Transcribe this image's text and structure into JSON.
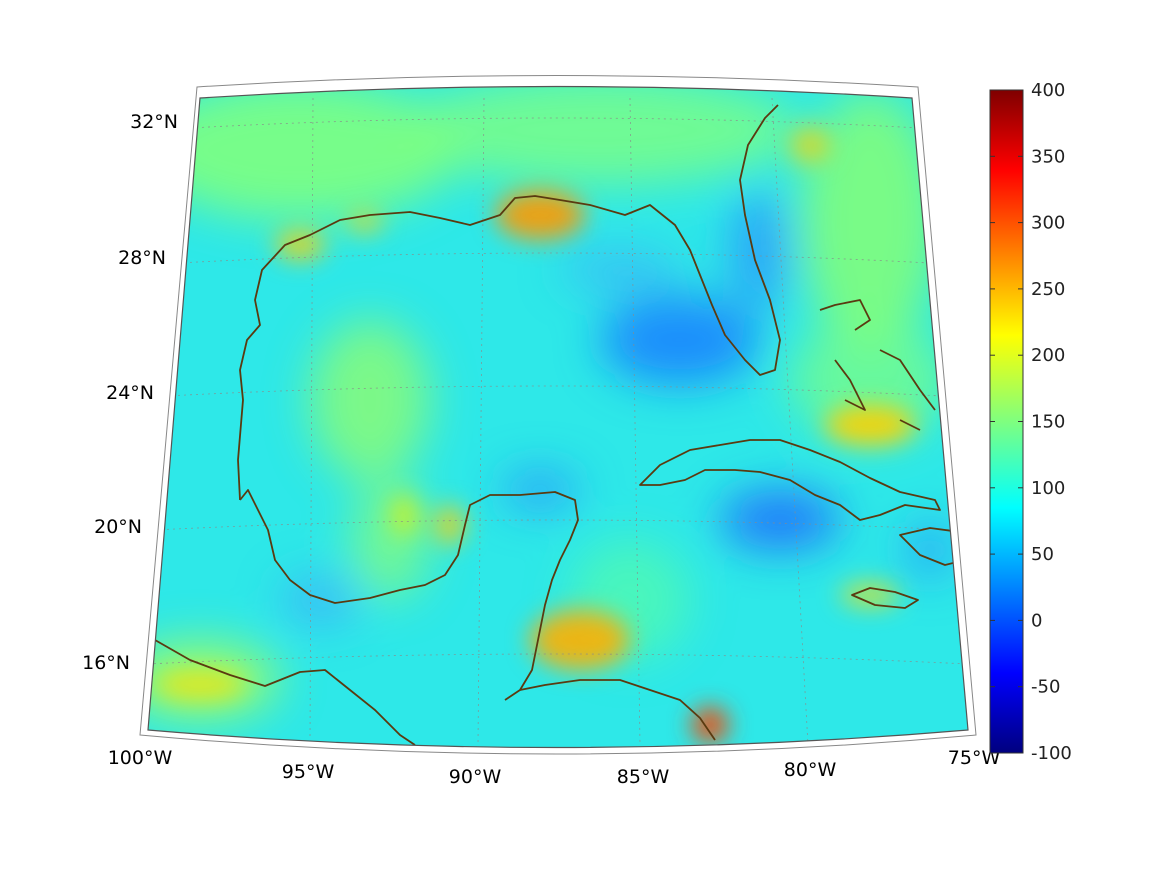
{
  "map": {
    "region": "Gulf of Mexico and Caribbean",
    "projection": "conic",
    "lon_range": [
      -100,
      -75
    ],
    "lat_range": [
      14,
      32
    ],
    "lat_labels": [
      "32°N",
      "28°N",
      "24°N",
      "20°N",
      "16°N"
    ],
    "lon_labels": [
      "100°W",
      "95°W",
      "90°W",
      "85°W",
      "80°W",
      "75°W"
    ],
    "gridlines": true,
    "coastline_color": "#5a3a10"
  },
  "colorbar": {
    "colormap": "jet",
    "min": -100,
    "max": 400,
    "tick_labels": [
      "400",
      "350",
      "300",
      "250",
      "200",
      "150",
      "100",
      "50",
      "0",
      "-50",
      "-100"
    ]
  },
  "field": {
    "background_value": 120,
    "highlights": [
      {
        "name": "mississippi-delta-high",
        "value": 280
      },
      {
        "name": "honduras-coast-high",
        "value": 260
      },
      {
        "name": "panama-coast-high",
        "value": 330
      },
      {
        "name": "bahamas-high",
        "value": 230
      },
      {
        "name": "campeche-high",
        "value": 210
      },
      {
        "name": "florida-straits-low",
        "value": 40
      },
      {
        "name": "cuba-south-low",
        "value": 40
      }
    ]
  }
}
